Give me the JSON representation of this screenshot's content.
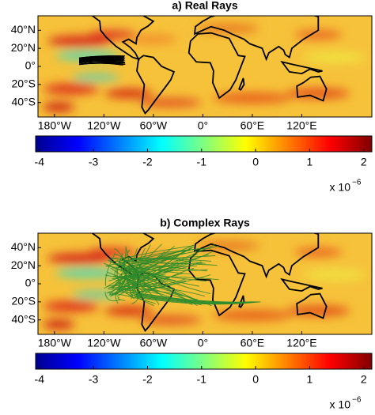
{
  "chart_data": [
    {
      "type": "map",
      "title": "a) Real Rays",
      "xlim": [
        -200,
        205
      ],
      "ylim": [
        -56,
        56
      ],
      "xticks": [
        {
          "value": -180,
          "label": "180°W"
        },
        {
          "value": -120,
          "label": "120°W"
        },
        {
          "value": -60,
          "label": "60°W"
        },
        {
          "value": 0,
          "label": "0°"
        },
        {
          "value": 60,
          "label": "60°E"
        },
        {
          "value": 120,
          "label": "120°E"
        }
      ],
      "yticks": [
        {
          "value": 40,
          "label": "40°N"
        },
        {
          "value": 20,
          "label": "20°N"
        },
        {
          "value": 0,
          "label": "0°"
        },
        {
          "value": -20,
          "label": "20°S"
        },
        {
          "value": -40,
          "label": "40°S"
        }
      ],
      "ray_color": "#000000",
      "colorbar": {
        "lim": [
          -4.07,
          2.15
        ],
        "ticks": [
          -4,
          -3,
          -2,
          -1,
          0,
          1,
          2
        ],
        "multiplier": {
          "base": "x 10",
          "exponent": "−6"
        }
      }
    },
    {
      "type": "map",
      "title": "b) Complex Rays",
      "xlim": [
        -200,
        205
      ],
      "ylim": [
        -56,
        56
      ],
      "xticks": [
        {
          "value": -180,
          "label": "180°W"
        },
        {
          "value": -120,
          "label": "120°W"
        },
        {
          "value": -60,
          "label": "60°W"
        },
        {
          "value": 0,
          "label": "0°"
        },
        {
          "value": 60,
          "label": "60°E"
        },
        {
          "value": 120,
          "label": "120°E"
        }
      ],
      "yticks": [
        {
          "value": 40,
          "label": "40°N"
        },
        {
          "value": 20,
          "label": "20°N"
        },
        {
          "value": 0,
          "label": "0°"
        },
        {
          "value": -20,
          "label": "20°S"
        },
        {
          "value": -40,
          "label": "40°S"
        }
      ],
      "ray_color": "#2e8b2e",
      "colorbar": {
        "lim": [
          -4.07,
          2.15
        ],
        "ticks": [
          -4,
          -3,
          -2,
          -1,
          0,
          1,
          2
        ],
        "multiplier": {
          "base": "x 10",
          "exponent": "−6"
        }
      }
    }
  ]
}
